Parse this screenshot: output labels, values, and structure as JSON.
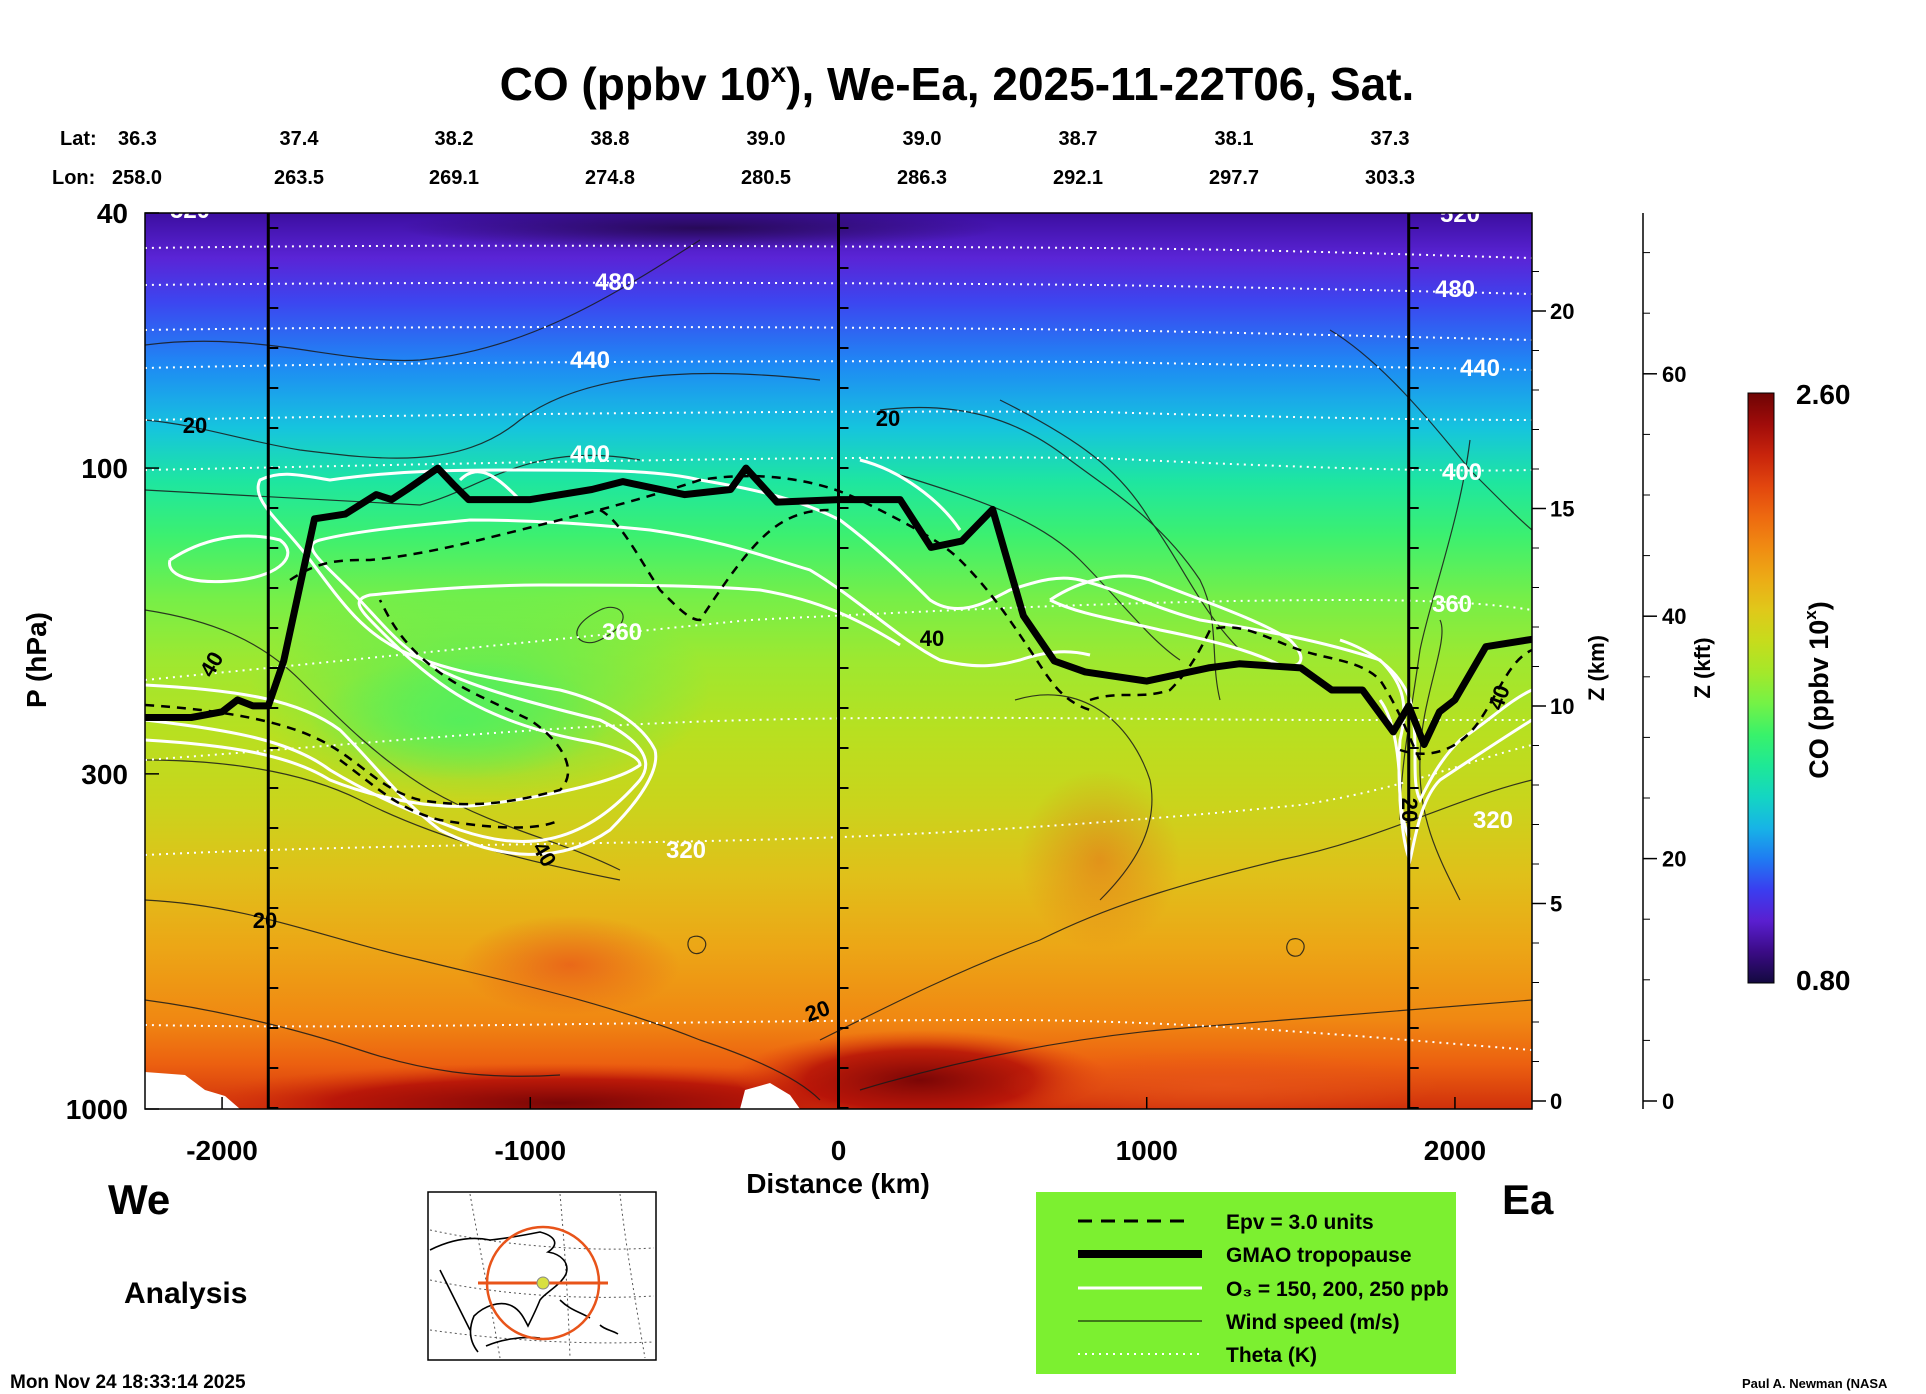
{
  "chart_data": {
    "type": "heatmap",
    "title": "CO (ppbv 10",
    "title_sup": "x",
    "title_rest": "), We-Ea, 2025-11-22T06, Sat.",
    "lat_label": "Lat:",
    "lon_label": "Lon:",
    "lats": [
      "36.3",
      "37.4",
      "38.2",
      "38.8",
      "39.0",
      "39.0",
      "38.7",
      "38.1",
      "37.3"
    ],
    "lons": [
      "258.0",
      "263.5",
      "269.1",
      "274.8",
      "280.5",
      "286.3",
      "292.1",
      "297.7",
      "303.3"
    ],
    "xlabel": "Distance (km)",
    "xlim": [
      -2250,
      2250
    ],
    "xticks": [
      -2000,
      -1000,
      0,
      1000,
      2000
    ],
    "x_tick_labels": [
      "-2000",
      "-1000",
      "0",
      "1000",
      "2000"
    ],
    "ylabel": "P (hPa)",
    "ylim": [
      1000,
      40
    ],
    "yticks": [
      1000,
      300,
      100,
      40
    ],
    "y_tick_labels": [
      "1000",
      "300",
      "100",
      "40"
    ],
    "z_km_label": "Z (km)",
    "z_km_ticks": [
      0,
      5,
      10,
      15,
      20
    ],
    "z_km_tick_labels": [
      "0",
      "5",
      "10",
      "15",
      "20"
    ],
    "z_kft_label": "Z (kft)",
    "z_kft_ticks": [
      0,
      20,
      40,
      60
    ],
    "z_kft_tick_labels": [
      "0",
      "20",
      "40",
      "60"
    ],
    "vertical_markers_km": [
      -1850,
      0,
      1850
    ],
    "theta_levels": [
      320,
      360,
      400,
      440,
      480,
      520
    ],
    "theta_labels": [
      "320",
      "360",
      "400",
      "440",
      "480",
      "520"
    ],
    "wind_labels": [
      "20",
      "40"
    ],
    "colorbar": {
      "label": "CO (ppbv 10",
      "label_sup": "x",
      "min": 0.8,
      "max": 2.6,
      "min_label": "0.80",
      "max_label": "2.60",
      "colors": [
        "#13093f",
        "#3b0b86",
        "#5a1fd0",
        "#3a3ef0",
        "#1f7cf2",
        "#17b4e6",
        "#14d6c2",
        "#1ee896",
        "#39f26a",
        "#74f246",
        "#a4e82a",
        "#c6dc1c",
        "#e0c81a",
        "#ecac16",
        "#f08c12",
        "#ee6a10",
        "#e2460e",
        "#c8240c",
        "#a00c0a",
        "#6e0404"
      ]
    },
    "legend": [
      {
        "label": "Epv = 3.0 units",
        "style": "dashed"
      },
      {
        "label": "GMAO tropopause",
        "style": "thick"
      },
      {
        "label": "O₃ = 150, 200, 250 ppb",
        "style": "white"
      },
      {
        "label": "Wind speed (m/s)",
        "style": "thin"
      },
      {
        "label": "Theta (K)",
        "style": "dotted"
      }
    ],
    "tropopause": {
      "x": [
        -2250,
        -2100,
        -2000,
        -1950,
        -1900,
        -1850,
        -1800,
        -1700,
        -1600,
        -1500,
        -1450,
        -1400,
        -1300,
        -1250,
        -1200,
        -1000,
        -800,
        -700,
        -500,
        -350,
        -300,
        -200,
        0,
        100,
        200,
        300,
        400,
        500,
        600,
        700,
        800,
        1000,
        1200,
        1300,
        1500,
        1600,
        1700,
        1800,
        1850,
        1900,
        1950,
        2000,
        2100,
        2250
      ],
      "p": [
        245,
        245,
        240,
        230,
        235,
        235,
        200,
        120,
        118,
        110,
        112,
        108,
        100,
        106,
        112,
        112,
        108,
        105,
        110,
        108,
        100,
        113,
        112,
        112,
        112,
        133,
        130,
        116,
        170,
        200,
        208,
        215,
        205,
        202,
        205,
        222,
        222,
        258,
        235,
        270,
        240,
        230,
        190,
        185
      ]
    },
    "annotations": {
      "left_region": "We",
      "right_region": "Ea",
      "kind": "Analysis",
      "timestamp": "Mon Nov 24 18:33:14 2025",
      "credit": "Paul A. Newman (NASA"
    }
  },
  "legend_bg": "#7cf030"
}
